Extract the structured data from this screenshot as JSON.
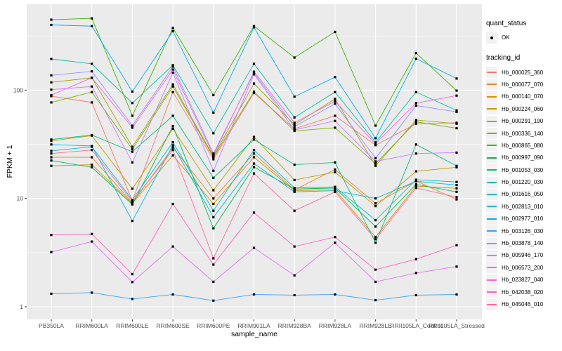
{
  "chart_data": {
    "type": "line",
    "title": "",
    "xlabel": "sample_name",
    "ylabel": "FPKM + 1",
    "y_scale": "log10",
    "y_ticks": [
      1,
      10,
      100
    ],
    "y_minor_ticks": [
      3.162,
      31.62,
      316.2
    ],
    "ylim": [
      0.76,
      620
    ],
    "grid": true,
    "panel_bg": "#EBEBEB",
    "grid_color": "#FFFFFF",
    "point_color": "#000000",
    "legend_position": "right",
    "categories": [
      "PB350LA",
      "RRIM600LA",
      "RRIM600LE",
      "RRIM600SE",
      "RRIM600PE",
      "RRIM901LA",
      "RRIM928BA",
      "RRIM928LA",
      "RRIM928LE",
      "RRII105LA_Control",
      "RRII105LA_Stressed"
    ],
    "series": [
      {
        "name": "Hb_000025_360",
        "color": "#F8766D",
        "values": [
          88,
          77,
          9.5,
          96,
          23,
          94,
          44,
          58,
          31,
          49,
          50
        ]
      },
      {
        "name": "Hb_000077_070",
        "color": "#EA8331",
        "values": [
          24,
          24,
          9.1,
          29.5,
          10,
          26,
          12,
          18.5,
          9,
          14.5,
          9.8
        ]
      },
      {
        "name": "Hb_000140_070",
        "color": "#D89000",
        "values": [
          20,
          20.5,
          9.0,
          25,
          8.9,
          24,
          11.8,
          12,
          4.4,
          13,
          12.4
        ]
      },
      {
        "name": "Hb_000224_060",
        "color": "#C09B00",
        "values": [
          34,
          38,
          12.3,
          44,
          11.9,
          37,
          14.8,
          17.5,
          8.5,
          17.8,
          19.4
        ]
      },
      {
        "name": "Hb_000291_190",
        "color": "#A3A500",
        "values": [
          118,
          130,
          30,
          113,
          24.5,
          115,
          48,
          83,
          20,
          53,
          49
        ]
      },
      {
        "name": "Hb_000336_140",
        "color": "#7CAE00",
        "values": [
          77,
          96,
          28.5,
          108,
          24,
          97,
          42,
          45,
          21,
          51,
          44.5
        ]
      },
      {
        "name": "Hb_000865_080",
        "color": "#39B600",
        "values": [
          447,
          460,
          58,
          375,
          90,
          390,
          200,
          345,
          47,
          220,
          99
        ]
      },
      {
        "name": "Hb_000997_090",
        "color": "#00BB4E",
        "values": [
          22.4,
          19.4,
          8.8,
          46.5,
          5.3,
          19.5,
          12.2,
          12.5,
          5.5,
          13.5,
          11.5
        ]
      },
      {
        "name": "Hb_001053_030",
        "color": "#00BF7D",
        "values": [
          35,
          38.5,
          27,
          58,
          15.5,
          35,
          20.5,
          21.5,
          3.9,
          31.5,
          20
        ]
      },
      {
        "name": "Hb_001220_030",
        "color": "#00C1A3",
        "values": [
          194,
          175,
          76,
          170,
          40,
          175,
          56,
          96,
          33,
          96,
          65
        ]
      },
      {
        "name": "Hb_001616_050",
        "color": "#00BFC4",
        "values": [
          27.5,
          30,
          9.7,
          33,
          7.7,
          28,
          12.5,
          12.8,
          6.3,
          14.9,
          14.2
        ]
      },
      {
        "name": "Hb_002813_010",
        "color": "#00BAE0",
        "values": [
          31.5,
          30.5,
          6.2,
          31,
          6.7,
          21,
          11.5,
          11.8,
          10,
          14.4,
          13.3
        ]
      },
      {
        "name": "Hb_002977_010",
        "color": "#00B0F6",
        "values": [
          400,
          390,
          97,
          350,
          62,
          380,
          87,
          132,
          36,
          195,
          128
        ]
      },
      {
        "name": "Hb_003126_030",
        "color": "#35A2FF",
        "values": [
          1.32,
          1.35,
          1.18,
          1.3,
          1.14,
          1.3,
          1.28,
          1.3,
          1.15,
          1.28,
          1.3
        ]
      },
      {
        "name": "Hb_003878_140",
        "color": "#9590FF",
        "values": [
          137,
          149,
          47,
          165,
          26,
          144,
          46,
          75,
          23.5,
          72,
          63
        ]
      },
      {
        "name": "Hb_005946_170",
        "color": "#C77CFF",
        "values": [
          101,
          108,
          21.5,
          145,
          18,
          140,
          43,
          52,
          22,
          26,
          26.5
        ]
      },
      {
        "name": "Hb_006573_200",
        "color": "#E76BF3",
        "values": [
          3.2,
          4.0,
          1.69,
          3.6,
          1.7,
          3.5,
          1.95,
          3.9,
          1.7,
          2.05,
          2.35
        ]
      },
      {
        "name": "Hb_023827_040",
        "color": "#FA62DB",
        "values": [
          90,
          130,
          45,
          155,
          25,
          148,
          50,
          79,
          32,
          76,
          89
        ]
      },
      {
        "name": "Hb_042038_020",
        "color": "#FF62BC",
        "values": [
          4.6,
          4.7,
          2.0,
          8.9,
          2.45,
          7.4,
          3.6,
          4.4,
          2.2,
          2.75,
          3.7
        ]
      },
      {
        "name": "Hb_045046_010",
        "color": "#FF6A98",
        "values": [
          26,
          28,
          9.4,
          28,
          2.8,
          17,
          7.7,
          11.5,
          4.2,
          12.5,
          10.3
        ]
      }
    ]
  },
  "legend": {
    "quant_status": {
      "title": "quant_status",
      "items": [
        {
          "label": "OK",
          "symbol": "point"
        }
      ]
    },
    "tracking_id": {
      "title": "tracking_id"
    }
  }
}
